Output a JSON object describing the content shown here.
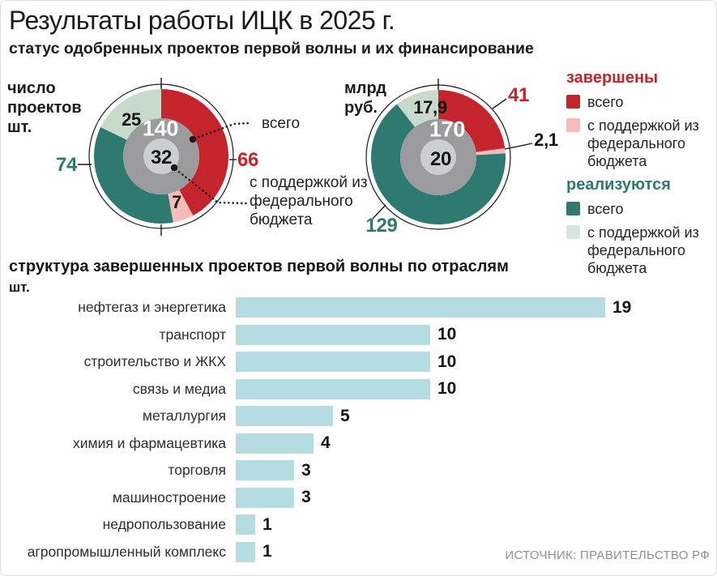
{
  "header": {
    "title": "Результаты работы ИЦК в 2025 г.",
    "subtitle": "статус одобренных проектов первой волны и их финансирование"
  },
  "donut_section": {
    "left_unit_label": "число\nпроектов\nшт.",
    "right_unit_label": "млрд\nруб.",
    "callout_total_label": "всего",
    "callout_federal_label": "с поддержкой из федерального бюджета"
  },
  "legend": {
    "completed_header": "завершены",
    "active_header": "реализуются",
    "total_label": "всего",
    "federal_label": "с поддержкой из федерального бюджета"
  },
  "footer": {
    "source": "ИСТОЧНИК: ПРАВИТЕЛЬСТВО РФ"
  },
  "colors": {
    "completed": "#c5242c",
    "completed_federal": "#f5bcba",
    "active": "#2e7a70",
    "active_federal": "#c8dacc",
    "legend_active_federal": "#d9e3e0",
    "ring_gray": "#9b9b9d",
    "ring_inner": "#cdced0",
    "bar": "#b5dce0",
    "line": "#1a1a1a"
  },
  "chart_data": [
    {
      "type": "donut",
      "title": "число проектов, шт.",
      "total": 140,
      "federal_total": 32,
      "series": [
        {
          "name": "завершены — всего",
          "value": 66,
          "label": "66"
        },
        {
          "name": "завершены — с поддержкой из федерального бюджета",
          "value": 7,
          "label": "7"
        },
        {
          "name": "реализуются — всего",
          "value": 74,
          "label": "74"
        },
        {
          "name": "реализуются — с поддержкой из федерального бюджета",
          "value": 25,
          "label": "25"
        }
      ]
    },
    {
      "type": "donut",
      "title": "млрд руб.",
      "total": 170,
      "federal_total": 20,
      "series": [
        {
          "name": "завершены — всего",
          "value": 41,
          "label": "41"
        },
        {
          "name": "завершены — с поддержкой из федерального бюджета",
          "value": 2.1,
          "label": "2,1"
        },
        {
          "name": "реализуются — всего",
          "value": 129,
          "label": "129"
        },
        {
          "name": "реализуются — с поддержкой из федерального бюджета",
          "value": 17.9,
          "label": "17,9"
        }
      ]
    },
    {
      "type": "bar",
      "title": "структура завершенных проектов первой волны по отраслям",
      "unit": "шт.",
      "orientation": "horizontal",
      "categories": [
        "нефтегаз и энергетика",
        "транспорт",
        "строительство и ЖКХ",
        "связь и медиа",
        "металлургия",
        "химия и фармацевтика",
        "торговля",
        "машиностроение",
        "недропользование",
        "агропромышленный комплекс"
      ],
      "values": [
        19,
        10,
        10,
        10,
        5,
        4,
        3,
        3,
        1,
        1
      ],
      "xlim": [
        0,
        19.5
      ]
    }
  ]
}
